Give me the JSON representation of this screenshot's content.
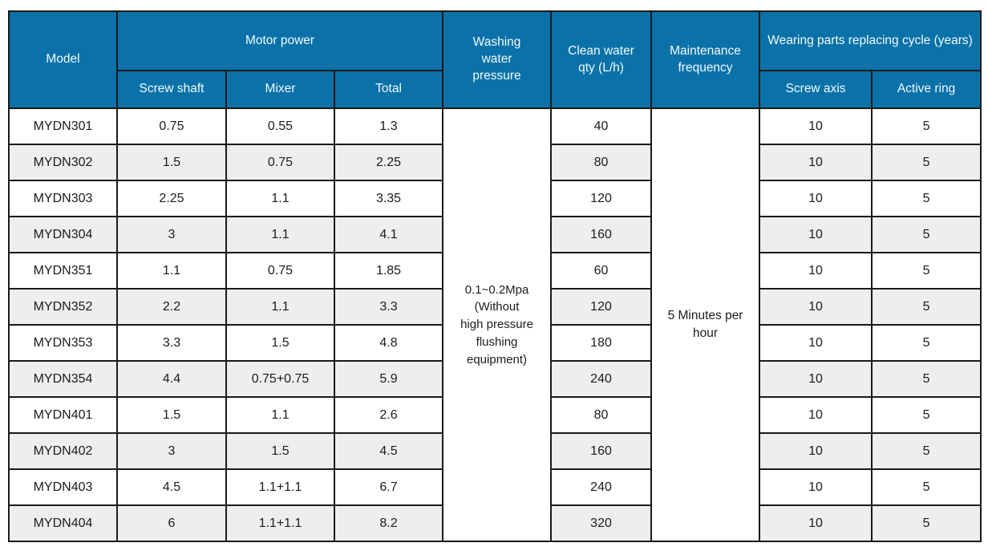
{
  "chart_data": {
    "type": "table",
    "title": "",
    "headers": {
      "model": "Model",
      "motor_power": "Motor power",
      "screw_shaft": "Screw shaft",
      "mixer": "Mixer",
      "total": "Total",
      "washing_water_pressure": "Washing water pressure",
      "clean_water_qty": "Clean water qty (L/h)",
      "maintenance_frequency": "Maintenance frequency",
      "wearing_parts_cycle": "Wearing parts replacing cycle (years)",
      "screw_axis": "Screw axis",
      "active_ring": "Active ring"
    },
    "merged": {
      "washing_water_pressure": "0.1~0.2Mpa\n(Without\nhigh pressure\nflushing\nequipment)",
      "maintenance_frequency": "5 Minutes per hour"
    },
    "rows": [
      {
        "model": "MYDN301",
        "screw_shaft": "0.75",
        "mixer": "0.55",
        "total": "1.3",
        "clean_water_qty": "40",
        "screw_axis": "10",
        "active_ring": "5"
      },
      {
        "model": "MYDN302",
        "screw_shaft": "1.5",
        "mixer": "0.75",
        "total": "2.25",
        "clean_water_qty": "80",
        "screw_axis": "10",
        "active_ring": "5"
      },
      {
        "model": "MYDN303",
        "screw_shaft": "2.25",
        "mixer": "1.1",
        "total": "3.35",
        "clean_water_qty": "120",
        "screw_axis": "10",
        "active_ring": "5"
      },
      {
        "model": "MYDN304",
        "screw_shaft": "3",
        "mixer": "1.1",
        "total": "4.1",
        "clean_water_qty": "160",
        "screw_axis": "10",
        "active_ring": "5"
      },
      {
        "model": "MYDN351",
        "screw_shaft": "1.1",
        "mixer": "0.75",
        "total": "1.85",
        "clean_water_qty": "60",
        "screw_axis": "10",
        "active_ring": "5"
      },
      {
        "model": "MYDN352",
        "screw_shaft": "2.2",
        "mixer": "1.1",
        "total": "3.3",
        "clean_water_qty": "120",
        "screw_axis": "10",
        "active_ring": "5"
      },
      {
        "model": "MYDN353",
        "screw_shaft": "3.3",
        "mixer": "1.5",
        "total": "4.8",
        "clean_water_qty": "180",
        "screw_axis": "10",
        "active_ring": "5"
      },
      {
        "model": "MYDN354",
        "screw_shaft": "4.4",
        "mixer": "0.75+0.75",
        "total": "5.9",
        "clean_water_qty": "240",
        "screw_axis": "10",
        "active_ring": "5"
      },
      {
        "model": "MYDN401",
        "screw_shaft": "1.5",
        "mixer": "1.1",
        "total": "2.6",
        "clean_water_qty": "80",
        "screw_axis": "10",
        "active_ring": "5"
      },
      {
        "model": "MYDN402",
        "screw_shaft": "3",
        "mixer": "1.5",
        "total": "4.5",
        "clean_water_qty": "160",
        "screw_axis": "10",
        "active_ring": "5"
      },
      {
        "model": "MYDN403",
        "screw_shaft": "4.5",
        "mixer": "1.1+1.1",
        "total": "6.7",
        "clean_water_qty": "240",
        "screw_axis": "10",
        "active_ring": "5"
      },
      {
        "model": "MYDN404",
        "screw_shaft": "6",
        "mixer": "1.1+1.1",
        "total": "8.2",
        "clean_water_qty": "320",
        "screw_axis": "10",
        "active_ring": "5"
      }
    ],
    "layout": {
      "row_count": 12,
      "grid": "on",
      "colors": {
        "header_bg": "#0a72a8",
        "header_text": "#f2f8fc",
        "border": "#1a1a1a",
        "alt_row_bg": "#eeeeee",
        "body_text": "#1c1c1c"
      }
    }
  }
}
